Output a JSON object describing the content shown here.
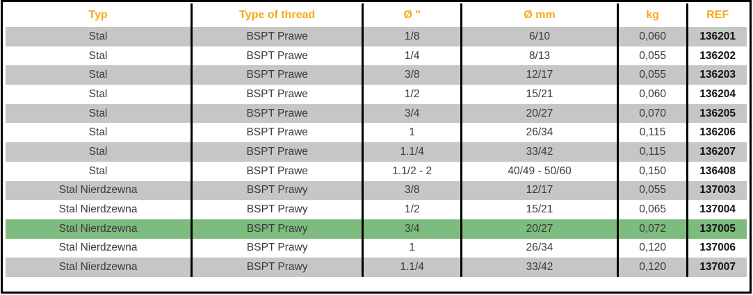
{
  "table": {
    "columns": [
      {
        "key": "typ",
        "label": "Typ"
      },
      {
        "key": "thread",
        "label": "Type of thread"
      },
      {
        "key": "d_inch",
        "label": "Ø \""
      },
      {
        "key": "d_mm",
        "label": "Ø mm"
      },
      {
        "key": "kg",
        "label": "kg"
      },
      {
        "key": "ref",
        "label": "REF"
      }
    ],
    "rows": [
      {
        "typ": "Stal",
        "thread": "BSPT Prawe",
        "d_inch": "1/8",
        "d_mm": "6/10",
        "kg": "0,060",
        "ref": "136201",
        "highlight": false
      },
      {
        "typ": "Stal",
        "thread": "BSPT Prawe",
        "d_inch": "1/4",
        "d_mm": "8/13",
        "kg": "0,055",
        "ref": "136202",
        "highlight": false
      },
      {
        "typ": "Stal",
        "thread": "BSPT Prawe",
        "d_inch": "3/8",
        "d_mm": "12/17",
        "kg": "0,055",
        "ref": "136203",
        "highlight": false
      },
      {
        "typ": "Stal",
        "thread": "BSPT Prawe",
        "d_inch": "1/2",
        "d_mm": "15/21",
        "kg": "0,060",
        "ref": "136204",
        "highlight": false
      },
      {
        "typ": "Stal",
        "thread": "BSPT Prawe",
        "d_inch": "3/4",
        "d_mm": "20/27",
        "kg": "0,070",
        "ref": "136205",
        "highlight": false
      },
      {
        "typ": "Stal",
        "thread": "BSPT Prawe",
        "d_inch": "1",
        "d_mm": "26/34",
        "kg": "0,115",
        "ref": "136206",
        "highlight": false
      },
      {
        "typ": "Stal",
        "thread": "BSPT Prawe",
        "d_inch": "1.1/4",
        "d_mm": "33/42",
        "kg": "0,115",
        "ref": "136207",
        "highlight": false
      },
      {
        "typ": "Stal",
        "thread": "BSPT Prawe",
        "d_inch": "1.1/2 - 2",
        "d_mm": "40/49 - 50/60",
        "kg": "0,150",
        "ref": "136408",
        "highlight": false
      },
      {
        "typ": "Stal Nierdzewna",
        "thread": "BSPT Prawy",
        "d_inch": "3/8",
        "d_mm": "12/17",
        "kg": "0,055",
        "ref": "137003",
        "highlight": false
      },
      {
        "typ": "Stal Nierdzewna",
        "thread": "BSPT Prawy",
        "d_inch": "1/2",
        "d_mm": "15/21",
        "kg": "0,065",
        "ref": "137004",
        "highlight": false
      },
      {
        "typ": "Stal Nierdzewna",
        "thread": "BSPT Prawy",
        "d_inch": "3/4",
        "d_mm": "20/27",
        "kg": "0,072",
        "ref": "137005",
        "highlight": true
      },
      {
        "typ": "Stal Nierdzewna",
        "thread": "BSPT Prawy",
        "d_inch": "1",
        "d_mm": "26/34",
        "kg": "0,120",
        "ref": "137006",
        "highlight": false
      },
      {
        "typ": "Stal Nierdzewna",
        "thread": "BSPT Prawy",
        "d_inch": "1.1/4",
        "d_mm": "33/42",
        "kg": "0,120",
        "ref": "137007",
        "highlight": false
      }
    ]
  },
  "colors": {
    "header_text": "#F8A81C",
    "row_shade": "#C6C6C6",
    "highlight_row": "#7EBB7E",
    "grid_line": "#000000"
  }
}
